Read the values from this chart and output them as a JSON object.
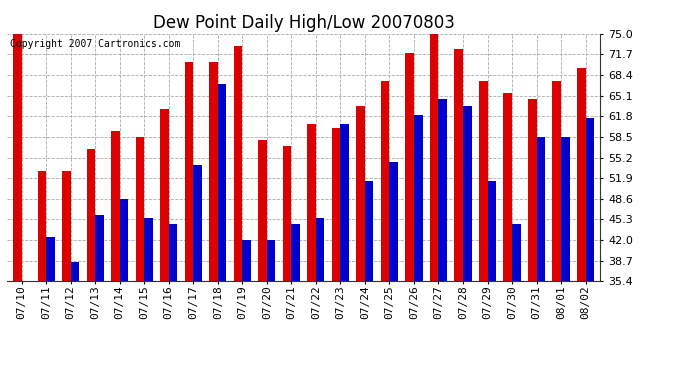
{
  "title": "Dew Point Daily High/Low 20070803",
  "copyright_text": "Copyright 2007 Cartronics.com",
  "categories": [
    "07/10",
    "07/11",
    "07/12",
    "07/13",
    "07/14",
    "07/15",
    "07/16",
    "07/17",
    "07/18",
    "07/19",
    "07/20",
    "07/21",
    "07/22",
    "07/23",
    "07/24",
    "07/25",
    "07/26",
    "07/27",
    "07/28",
    "07/29",
    "07/30",
    "07/31",
    "08/01",
    "08/02"
  ],
  "highs": [
    75.0,
    53.0,
    53.0,
    56.5,
    59.5,
    58.5,
    63.0,
    70.5,
    70.5,
    73.0,
    58.0,
    57.0,
    60.5,
    60.0,
    63.5,
    67.5,
    72.0,
    75.5,
    72.5,
    67.5,
    65.5,
    64.5,
    67.5,
    69.5
  ],
  "lows": [
    35.4,
    42.5,
    38.5,
    46.0,
    48.5,
    45.5,
    44.5,
    54.0,
    67.0,
    42.0,
    42.0,
    44.5,
    45.5,
    60.5,
    51.5,
    54.5,
    62.0,
    64.5,
    63.5,
    51.5,
    44.5,
    58.5,
    58.5,
    61.5
  ],
  "high_color": "#dd0000",
  "low_color": "#0000cc",
  "background_color": "#ffffff",
  "plot_bg_color": "#ffffff",
  "grid_color": "#aaaaaa",
  "ymin": 35.4,
  "ymax": 75.0,
  "yticks": [
    35.4,
    38.7,
    42.0,
    45.3,
    48.6,
    51.9,
    55.2,
    58.5,
    61.8,
    65.1,
    68.4,
    71.7,
    75.0
  ],
  "bar_width": 0.35,
  "title_fontsize": 12,
  "tick_fontsize": 8,
  "copyright_fontsize": 7
}
